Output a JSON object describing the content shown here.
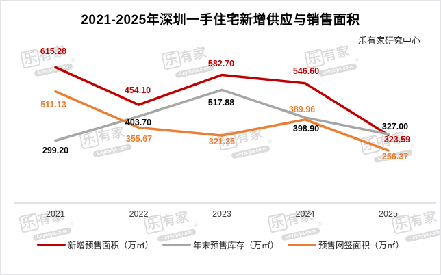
{
  "title": "2021-2025年深圳一手住宅新增供应与销售面积",
  "source_label": "乐有家研究中心",
  "watermark": {
    "brand": "乐有家",
    "domain": "Leyoujia.com",
    "reg": "®",
    "color": "#DBDBDB"
  },
  "axis": {
    "line_color": "#D2D2D2",
    "tick_color": "#3F3F3F"
  },
  "chart_data": {
    "type": "line",
    "title": "2021-2025年深圳一手住宅新增供应与销售面积",
    "categories": [
      "2021",
      "2022",
      "2023",
      "2024",
      "2025"
    ],
    "xlabel": "",
    "ylabel": "",
    "grid": false,
    "legend_position": "bottom",
    "series": [
      {
        "name": "新增预售面积（万㎡）",
        "color": "#C00000",
        "label_color": "#C00000",
        "values": [
          615.28,
          454.1,
          582.7,
          546.6,
          323.59
        ],
        "labels": [
          "615.28",
          "454.10",
          "582.70",
          "546.60",
          "323.59"
        ]
      },
      {
        "name": "年末预售库存（万㎡）",
        "color": "#A6A6A6",
        "label_color": "#000000",
        "values": [
          299.2,
          403.7,
          517.88,
          398.9,
          327.0
        ],
        "labels": [
          "299.20",
          "403.70",
          "517.88",
          "398.90",
          "327.00"
        ]
      },
      {
        "name": "预售网签面积（万㎡）",
        "color": "#ED7D31",
        "label_color": "#ED7D31",
        "values": [
          511.13,
          355.67,
          321.35,
          389.96,
          256.37
        ],
        "labels": [
          "511.13",
          "355.67",
          "321.35",
          "389.96",
          "256.37"
        ]
      }
    ]
  }
}
